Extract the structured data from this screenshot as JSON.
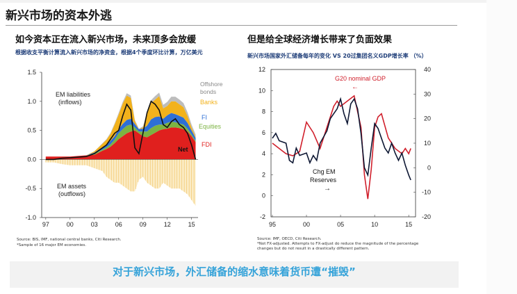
{
  "page_title": "新兴市场的资本外逃",
  "bottom_caption": "对于新兴市场，外汇储备的缩水意味着货币遭“摧毁”",
  "left_panel": {
    "title": "如今资本正在流入新兴市场，未来顶多会放缓",
    "subtitle": "根据收支平衡计算流入新兴市场的净资金，根据4个季度环比计算，万亿美元",
    "source_line1": "Source: BIS, IMF, national central banks, Citi Research.",
    "source_line2": "*Sample of  16 major EM economies."
  },
  "right_panel": {
    "title": "但是给全球经济增长带来了负面效果",
    "subtitle": "新兴市场国家外汇储备每年的变化      VS     20过集团名义GDP增长率   （%）",
    "source_line1": "Source: IMF, OECD, Citi Research.",
    "source_line2": "*Not FX-adjusted. Attempts to FX-adjust do reduce the magnitude of the percentage",
    "source_line3": "changes but do not result in a drastically different pattern."
  },
  "chart_data": [
    {
      "type": "area",
      "x_tick_labels": [
        "97",
        "00",
        "03",
        "06",
        "09",
        "12",
        "15"
      ],
      "x_tick_years": [
        1997,
        2000,
        2003,
        2006,
        2009,
        2012,
        2015
      ],
      "y_tick_labels": [
        "1.5",
        "1.0",
        "0.5",
        "0.0",
        "-0.5",
        "-1.0"
      ],
      "ylim": [
        -1.0,
        1.5
      ],
      "xlim": [
        1996.5,
        2015.8
      ],
      "annotations": {
        "liabilities": [
          "EM liabilities",
          "(inflows)"
        ],
        "assets": [
          "EM assets",
          "(outflows)"
        ],
        "offshore": [
          "Offshore",
          "bonds"
        ],
        "banks": "Banks",
        "fi": "FI",
        "equities": "Equities",
        "fdi": "FDI",
        "net": "Net"
      },
      "colors": {
        "fdi": "#e0201e",
        "equities": "#7cb342",
        "fi": "#2e6fd6",
        "banks": "#f2b21c",
        "offshore": "#bdbdbd",
        "net": "#111111",
        "assets_stripe": "#f2c66b"
      },
      "x": [
        1997.0,
        1998.0,
        1999.0,
        2000.0,
        2001.0,
        2002.0,
        2003.0,
        2004.0,
        2004.5,
        2005.0,
        2005.5,
        2006.0,
        2006.5,
        2007.0,
        2007.5,
        2008.0,
        2008.5,
        2009.0,
        2009.5,
        2010.0,
        2010.5,
        2011.0,
        2011.5,
        2012.0,
        2012.5,
        2013.0,
        2013.5,
        2014.0,
        2014.5,
        2015.0,
        2015.5
      ],
      "series": [
        {
          "name": "FDI",
          "values": [
            0.05,
            0.05,
            0.05,
            0.05,
            0.06,
            0.07,
            0.08,
            0.15,
            0.18,
            0.22,
            0.28,
            0.35,
            0.4,
            0.45,
            0.48,
            0.5,
            0.45,
            0.4,
            0.38,
            0.42,
            0.46,
            0.5,
            0.52,
            0.53,
            0.55,
            0.55,
            0.54,
            0.52,
            0.48,
            0.4,
            0.3
          ]
        },
        {
          "name": "Equities",
          "values": [
            0.0,
            0.0,
            0.0,
            0.0,
            0.0,
            0.0,
            0.02,
            0.02,
            0.03,
            0.04,
            0.06,
            0.1,
            0.12,
            0.13,
            0.12,
            0.05,
            0.03,
            0.08,
            0.1,
            0.12,
            0.12,
            0.1,
            0.08,
            0.1,
            0.1,
            0.09,
            0.08,
            0.08,
            0.05,
            0.03,
            0.02
          ]
        },
        {
          "name": "FI",
          "values": [
            0.0,
            0.0,
            0.0,
            0.0,
            0.0,
            0.0,
            0.02,
            0.04,
            0.05,
            0.06,
            0.06,
            0.07,
            0.09,
            0.1,
            0.1,
            0.06,
            0.04,
            0.05,
            0.1,
            0.15,
            0.15,
            0.14,
            0.1,
            0.13,
            0.15,
            0.14,
            0.13,
            0.12,
            0.1,
            0.07,
            0.05
          ]
        },
        {
          "name": "Banks",
          "values": [
            0.0,
            0.0,
            0.0,
            0.0,
            0.0,
            0.0,
            0.02,
            0.06,
            0.08,
            0.12,
            0.2,
            0.25,
            0.35,
            0.42,
            0.36,
            0.05,
            0.0,
            0.02,
            0.2,
            0.28,
            0.3,
            0.35,
            0.18,
            0.16,
            0.2,
            0.22,
            0.2,
            0.18,
            0.12,
            0.05,
            0.02
          ]
        },
        {
          "name": "Offshore bonds",
          "values": [
            0.0,
            0.0,
            0.0,
            0.0,
            0.0,
            0.0,
            0.0,
            0.01,
            0.01,
            0.02,
            0.02,
            0.03,
            0.03,
            0.04,
            0.04,
            0.02,
            0.01,
            0.02,
            0.03,
            0.05,
            0.06,
            0.06,
            0.06,
            0.07,
            0.08,
            0.08,
            0.08,
            0.07,
            0.06,
            0.05,
            0.04
          ]
        },
        {
          "name": "EM assets (outflows)",
          "values": [
            -0.05,
            -0.05,
            -0.08,
            -0.1,
            -0.1,
            -0.1,
            -0.15,
            -0.2,
            -0.3,
            -0.35,
            -0.4,
            -0.4,
            -0.45,
            -0.5,
            -0.55,
            -0.55,
            -0.35,
            -0.3,
            -0.4,
            -0.45,
            -0.5,
            -0.5,
            -0.4,
            -0.45,
            -0.5,
            -0.5,
            -0.5,
            -0.55,
            -0.6,
            -0.7,
            -0.8
          ]
        },
        {
          "name": "Net",
          "values": [
            0.0,
            0.0,
            0.02,
            0.03,
            0.04,
            0.05,
            0.1,
            0.2,
            0.25,
            0.35,
            0.45,
            0.5,
            0.75,
            0.95,
            0.85,
            0.2,
            0.1,
            0.45,
            0.8,
            1.0,
            0.95,
            0.85,
            0.6,
            0.55,
            0.65,
            0.7,
            0.6,
            0.55,
            0.45,
            0.25,
            0.0
          ]
        }
      ]
    },
    {
      "type": "line",
      "x_tick_labels": [
        "95",
        "00",
        "05",
        "10",
        "15"
      ],
      "x_tick_years": [
        1995,
        2000,
        2005,
        2010,
        2015
      ],
      "xlim": [
        1994.8,
        2016.0
      ],
      "y_left_tick_labels": [
        "12",
        "10",
        "8",
        "6",
        "4",
        "2",
        "0",
        "-2"
      ],
      "y_left_lim": [
        -2,
        12
      ],
      "y_right_tick_labels": [
        "40",
        "30",
        "20",
        "10",
        "0",
        "-10",
        "-20"
      ],
      "y_right_lim": [
        -20,
        40
      ],
      "annotations": {
        "g20_label": "G20 nominal GDP",
        "g20_arrow": "←",
        "em_label": [
          "Chg EM",
          "Reserves"
        ],
        "em_arrow": "→"
      },
      "colors": {
        "g20": "#d01f2b",
        "em": "#0d1733"
      },
      "series": [
        {
          "name": "G20 nominal GDP",
          "axis": "left",
          "x": [
            1995.0,
            1996.0,
            1997.0,
            1998.0,
            1999.0,
            2000.0,
            2001.0,
            2002.0,
            2003.0,
            2004.0,
            2004.5,
            2005.0,
            2006.0,
            2007.0,
            2008.0,
            2008.5,
            2009.0,
            2009.5,
            2010.0,
            2010.5,
            2011.0,
            2012.0,
            2013.0,
            2014.0,
            2014.5,
            2015.0,
            2015.3
          ],
          "values": [
            5.0,
            4.5,
            4.0,
            3.8,
            4.2,
            7.0,
            6.0,
            4.5,
            6.5,
            8.5,
            9.0,
            8.5,
            9.0,
            9.5,
            6.5,
            2.0,
            -0.3,
            2.5,
            6.5,
            7.5,
            7.8,
            5.5,
            4.5,
            4.0,
            4.5,
            4.0,
            4.5
          ]
        },
        {
          "name": "Chg EM Reserves",
          "axis": "right",
          "x": [
            1995.0,
            1995.5,
            1996.0,
            1997.0,
            1997.5,
            1998.0,
            1998.5,
            1999.0,
            2000.0,
            2000.5,
            2001.0,
            2001.5,
            2002.0,
            2003.0,
            2003.5,
            2004.0,
            2004.5,
            2005.0,
            2005.5,
            2006.0,
            2006.5,
            2007.0,
            2007.5,
            2008.0,
            2008.5,
            2009.0,
            2009.5,
            2010.0,
            2010.5,
            2011.0,
            2011.5,
            2012.0,
            2012.5,
            2013.0,
            2013.5,
            2014.0,
            2014.5,
            2015.0,
            2015.3
          ],
          "values": [
            12.0,
            14.0,
            11.0,
            10.0,
            3.0,
            2.0,
            8.0,
            5.0,
            6.0,
            2.0,
            5.0,
            3.0,
            10.0,
            15.0,
            20.0,
            22.0,
            24.0,
            28.0,
            22.0,
            18.0,
            26.0,
            28.0,
            24.0,
            14.0,
            0.0,
            -3.0,
            8.0,
            18.0,
            16.0,
            12.0,
            8.0,
            6.0,
            10.0,
            6.0,
            3.0,
            6.0,
            1.0,
            -3.0,
            -5.0
          ]
        }
      ]
    }
  ]
}
